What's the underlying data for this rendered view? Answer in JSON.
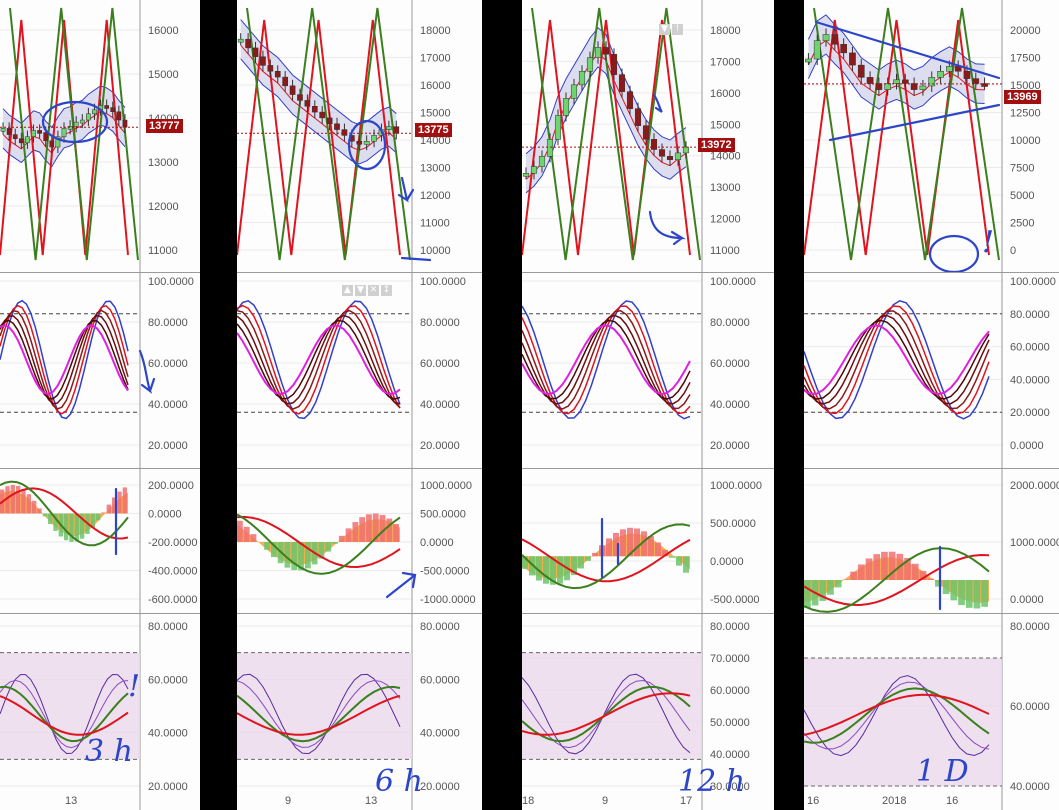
{
  "colors": {
    "bull_candle": "#6fd36f",
    "bear_candle": "#8b1a1a",
    "band_fill": "#c8c8e8",
    "red_line": "#e0141e",
    "green_line": "#3c7f1e",
    "blue_line": "#3240c8",
    "magenta_line": "#e020e0",
    "macd_bar_up": "#6cc46c",
    "macd_bar_down": "#f07070",
    "macd_area": "#f8a030",
    "rsi_zone": "#ead8ea",
    "annotation": "#2d46c8",
    "price_flag": "#a01010"
  },
  "panels": [
    {
      "id": "3h",
      "timeframe_label": "3 h",
      "price_flag": "13777",
      "annotation_mark": "!",
      "x_labels": [
        "13"
      ],
      "price_ticks": [
        "16000",
        "15000",
        "14000",
        "13000",
        "12000",
        "11000"
      ],
      "stoch_ticks": [
        "100.0000",
        "80.0000",
        "60.0000",
        "40.0000",
        "20.0000"
      ],
      "macd_ticks": [
        "200.0000",
        "0.0000",
        "-200.0000",
        "-400.0000",
        "-600.0000"
      ],
      "rsi_ticks": [
        "80.0000",
        "60.0000",
        "40.0000",
        "20.0000"
      ]
    },
    {
      "id": "6h",
      "timeframe_label": "6 h",
      "price_flag": "13775",
      "x_labels": [
        "9",
        "13"
      ],
      "price_ticks": [
        "18000",
        "17000",
        "16000",
        "15000",
        "14000",
        "13000",
        "12000",
        "11000",
        "10000"
      ],
      "stoch_ticks": [
        "100.0000",
        "80.0000",
        "60.0000",
        "40.0000",
        "20.0000"
      ],
      "macd_ticks": [
        "1000.0000",
        "500.0000",
        "0.0000",
        "-500.0000",
        "-1000.0000"
      ],
      "rsi_ticks": [
        "80.0000",
        "60.0000",
        "40.0000",
        "20.0000"
      ]
    },
    {
      "id": "12h",
      "timeframe_label": "12 h",
      "price_flag": "13972",
      "x_labels": [
        "18",
        "9",
        "17"
      ],
      "price_ticks": [
        "18000",
        "17000",
        "16000",
        "15000",
        "14000",
        "13000",
        "12000",
        "11000"
      ],
      "stoch_ticks": [
        "100.0000",
        "80.0000",
        "60.0000",
        "40.0000",
        "20.0000"
      ],
      "macd_ticks": [
        "1000.0000",
        "500.0000",
        "0.0000",
        "-500.0000"
      ],
      "rsi_ticks": [
        "80.0000",
        "70.0000",
        "60.0000",
        "50.0000",
        "40.0000",
        "30.0000"
      ]
    },
    {
      "id": "1d",
      "timeframe_label": "1 D",
      "price_flag": "13969",
      "annotation_mark": "!",
      "x_labels": [
        "16",
        "2018",
        "16"
      ],
      "price_ticks": [
        "20000",
        "17500",
        "15000",
        "12500",
        "10000",
        "7500",
        "5000",
        "2500",
        "0"
      ],
      "stoch_ticks": [
        "100.0000",
        "80.0000",
        "60.0000",
        "40.0000",
        "20.0000",
        "0.0000"
      ],
      "macd_ticks": [
        "2000.0000",
        "1000.0000",
        "0.0000"
      ],
      "rsi_ticks": [
        "80.0000",
        "60.0000",
        "40.0000"
      ]
    }
  ],
  "chart_data": [
    {
      "type": "line",
      "timeframe": "3h",
      "last_price": 13777,
      "price_range": [
        10700,
        16600
      ],
      "close_series": [
        13750,
        13600,
        13500,
        13400,
        13550,
        13700,
        13650,
        13450,
        13300,
        13550,
        13750,
        13800,
        13900,
        13950,
        14100,
        14200,
        14300,
        14250,
        14150,
        13950,
        13777
      ],
      "stochastic_range": [
        0,
        100
      ],
      "macd_range": [
        -600,
        200
      ],
      "rsi_range": [
        20,
        80
      ]
    },
    {
      "type": "line",
      "timeframe": "6h",
      "last_price": 13775,
      "price_range": [
        9600,
        18000
      ],
      "close_series": [
        17000,
        16700,
        16400,
        16100,
        15900,
        15700,
        15400,
        15100,
        14900,
        14700,
        14500,
        14300,
        14100,
        13900,
        13700,
        13500,
        13400,
        13500,
        13700,
        13900,
        14000,
        13775
      ],
      "stochastic_range": [
        0,
        100
      ],
      "macd_range": [
        -1000,
        1000
      ],
      "rsi_range": [
        20,
        80
      ]
    },
    {
      "type": "line",
      "timeframe": "12h",
      "last_price": 13972,
      "price_range": [
        10800,
        18000
      ],
      "close_series": [
        13200,
        13400,
        13700,
        14200,
        14900,
        15400,
        15800,
        16200,
        16600,
        16900,
        16700,
        16100,
        15600,
        15100,
        14600,
        14200,
        13900,
        13700,
        13600,
        13800,
        13972
      ],
      "stochastic_range": [
        0,
        100
      ],
      "macd_range": [
        -750,
        1250
      ],
      "rsi_range": [
        20,
        80
      ]
    },
    {
      "type": "line",
      "timeframe": "1D",
      "last_price": 13969,
      "price_range": [
        0,
        20000
      ],
      "close_series": [
        16000,
        17500,
        18000,
        17200,
        16500,
        15500,
        14500,
        14000,
        13500,
        14000,
        14300,
        14000,
        13500,
        13800,
        14500,
        15000,
        15400,
        15000,
        14400,
        14000,
        13969
      ],
      "stochastic_range": [
        0,
        100
      ],
      "macd_range": [
        -500,
        2500
      ],
      "rsi_range": [
        30,
        80
      ]
    }
  ]
}
